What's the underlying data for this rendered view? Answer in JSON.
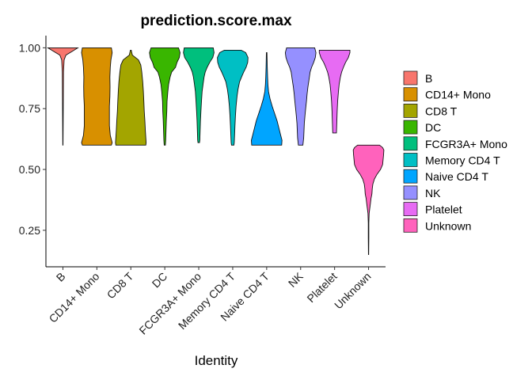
{
  "chart_data": {
    "type": "violin",
    "title": "prediction.score.max",
    "xlabel": "Identity",
    "ylabel": "",
    "ylim": [
      0.1,
      1.05
    ],
    "yticks": [
      0.25,
      0.5,
      0.75,
      1.0
    ],
    "ytick_labels": [
      "0.25",
      "0.50",
      "0.75",
      "1.00"
    ],
    "categories": [
      "B",
      "CD14+ Mono",
      "CD8 T",
      "DC",
      "FCGR3A+ Mono",
      "Memory CD4 T",
      "Naive CD4 T",
      "NK",
      "Platelet",
      "Unknown"
    ],
    "legend_position": "right",
    "series": [
      {
        "name": "B",
        "color": "#F8766D",
        "profile": [
          [
            1.0,
            0.98
          ],
          [
            0.985,
            0.6
          ],
          [
            0.97,
            0.2
          ],
          [
            0.95,
            0.08
          ],
          [
            0.9,
            0.04
          ],
          [
            0.8,
            0.03
          ],
          [
            0.7,
            0.02
          ],
          [
            0.6,
            0.01
          ]
        ]
      },
      {
        "name": "CD14+ Mono",
        "color": "#D89000",
        "profile": [
          [
            1.0,
            0.95
          ],
          [
            0.98,
            1.0
          ],
          [
            0.95,
            0.92
          ],
          [
            0.92,
            0.88
          ],
          [
            0.88,
            0.85
          ],
          [
            0.84,
            0.86
          ],
          [
            0.8,
            0.85
          ],
          [
            0.76,
            0.82
          ],
          [
            0.72,
            0.82
          ],
          [
            0.68,
            0.82
          ],
          [
            0.64,
            0.88
          ],
          [
            0.61,
            1.0
          ],
          [
            0.6,
            0.95
          ]
        ]
      },
      {
        "name": "CD8 T",
        "color": "#A3A500",
        "profile": [
          [
            0.99,
            0.03
          ],
          [
            0.97,
            0.1
          ],
          [
            0.95,
            0.5
          ],
          [
            0.93,
            0.65
          ],
          [
            0.9,
            0.72
          ],
          [
            0.86,
            0.78
          ],
          [
            0.82,
            0.82
          ],
          [
            0.78,
            0.85
          ],
          [
            0.74,
            0.88
          ],
          [
            0.7,
            0.92
          ],
          [
            0.66,
            0.95
          ],
          [
            0.63,
            0.98
          ],
          [
            0.61,
            1.0
          ],
          [
            0.6,
            0.98
          ]
        ]
      },
      {
        "name": "DC",
        "color": "#39B600",
        "profile": [
          [
            1.0,
            0.9
          ],
          [
            0.98,
            1.0
          ],
          [
            0.96,
            0.95
          ],
          [
            0.94,
            0.8
          ],
          [
            0.92,
            0.7
          ],
          [
            0.9,
            0.45
          ],
          [
            0.88,
            0.35
          ],
          [
            0.85,
            0.25
          ],
          [
            0.82,
            0.2
          ],
          [
            0.78,
            0.15
          ],
          [
            0.74,
            0.13
          ],
          [
            0.7,
            0.1
          ],
          [
            0.66,
            0.08
          ],
          [
            0.62,
            0.06
          ],
          [
            0.6,
            0.04
          ]
        ]
      },
      {
        "name": "FCGR3A+ Mono",
        "color": "#00BF7D",
        "profile": [
          [
            1.0,
            0.95
          ],
          [
            0.98,
            1.0
          ],
          [
            0.96,
            0.92
          ],
          [
            0.94,
            0.72
          ],
          [
            0.92,
            0.55
          ],
          [
            0.9,
            0.42
          ],
          [
            0.88,
            0.35
          ],
          [
            0.85,
            0.28
          ],
          [
            0.82,
            0.22
          ],
          [
            0.78,
            0.18
          ],
          [
            0.74,
            0.14
          ],
          [
            0.7,
            0.11
          ],
          [
            0.66,
            0.09
          ],
          [
            0.62,
            0.07
          ],
          [
            0.61,
            0.05
          ]
        ]
      },
      {
        "name": "Memory CD4 T",
        "color": "#00BFC4",
        "profile": [
          [
            0.99,
            0.55
          ],
          [
            0.98,
            0.85
          ],
          [
            0.96,
            1.0
          ],
          [
            0.94,
            0.98
          ],
          [
            0.92,
            0.88
          ],
          [
            0.9,
            0.72
          ],
          [
            0.88,
            0.58
          ],
          [
            0.86,
            0.45
          ],
          [
            0.83,
            0.35
          ],
          [
            0.8,
            0.28
          ],
          [
            0.76,
            0.22
          ],
          [
            0.72,
            0.18
          ],
          [
            0.68,
            0.15
          ],
          [
            0.64,
            0.12
          ],
          [
            0.61,
            0.1
          ],
          [
            0.6,
            0.08
          ]
        ]
      },
      {
        "name": "Naive CD4 T",
        "color": "#00A5FF",
        "profile": [
          [
            0.98,
            0.02
          ],
          [
            0.95,
            0.03
          ],
          [
            0.92,
            0.04
          ],
          [
            0.88,
            0.06
          ],
          [
            0.85,
            0.08
          ],
          [
            0.82,
            0.12
          ],
          [
            0.79,
            0.22
          ],
          [
            0.76,
            0.36
          ],
          [
            0.73,
            0.52
          ],
          [
            0.7,
            0.68
          ],
          [
            0.67,
            0.8
          ],
          [
            0.64,
            0.92
          ],
          [
            0.62,
            1.0
          ],
          [
            0.6,
            0.98
          ]
        ]
      },
      {
        "name": "NK",
        "color": "#9590FF",
        "profile": [
          [
            1.0,
            0.92
          ],
          [
            0.98,
            1.0
          ],
          [
            0.96,
            0.96
          ],
          [
            0.94,
            0.85
          ],
          [
            0.92,
            0.72
          ],
          [
            0.9,
            0.62
          ],
          [
            0.87,
            0.55
          ],
          [
            0.84,
            0.48
          ],
          [
            0.81,
            0.42
          ],
          [
            0.78,
            0.38
          ],
          [
            0.75,
            0.33
          ],
          [
            0.72,
            0.28
          ],
          [
            0.69,
            0.24
          ],
          [
            0.66,
            0.22
          ],
          [
            0.63,
            0.2
          ],
          [
            0.6,
            0.15
          ]
        ]
      },
      {
        "name": "Platelet",
        "color": "#E76BF3",
        "profile": [
          [
            0.99,
            1.0
          ],
          [
            0.98,
            1.0
          ],
          [
            0.96,
            0.9
          ],
          [
            0.94,
            0.72
          ],
          [
            0.92,
            0.58
          ],
          [
            0.9,
            0.46
          ],
          [
            0.88,
            0.38
          ],
          [
            0.85,
            0.3
          ],
          [
            0.82,
            0.25
          ],
          [
            0.78,
            0.2
          ],
          [
            0.74,
            0.17
          ],
          [
            0.7,
            0.15
          ],
          [
            0.67,
            0.13
          ],
          [
            0.65,
            0.12
          ]
        ]
      },
      {
        "name": "Unknown",
        "color": "#FF62BC",
        "profile": [
          [
            0.6,
            0.72
          ],
          [
            0.59,
            0.92
          ],
          [
            0.58,
            1.0
          ],
          [
            0.56,
            0.98
          ],
          [
            0.54,
            0.95
          ],
          [
            0.52,
            0.92
          ],
          [
            0.5,
            0.78
          ],
          [
            0.48,
            0.55
          ],
          [
            0.46,
            0.38
          ],
          [
            0.44,
            0.28
          ],
          [
            0.42,
            0.24
          ],
          [
            0.4,
            0.22
          ],
          [
            0.38,
            0.16
          ],
          [
            0.36,
            0.12
          ],
          [
            0.34,
            0.08
          ],
          [
            0.32,
            0.04
          ],
          [
            0.28,
            0.02
          ],
          [
            0.22,
            0.02
          ],
          [
            0.15,
            0.01
          ]
        ]
      }
    ]
  }
}
